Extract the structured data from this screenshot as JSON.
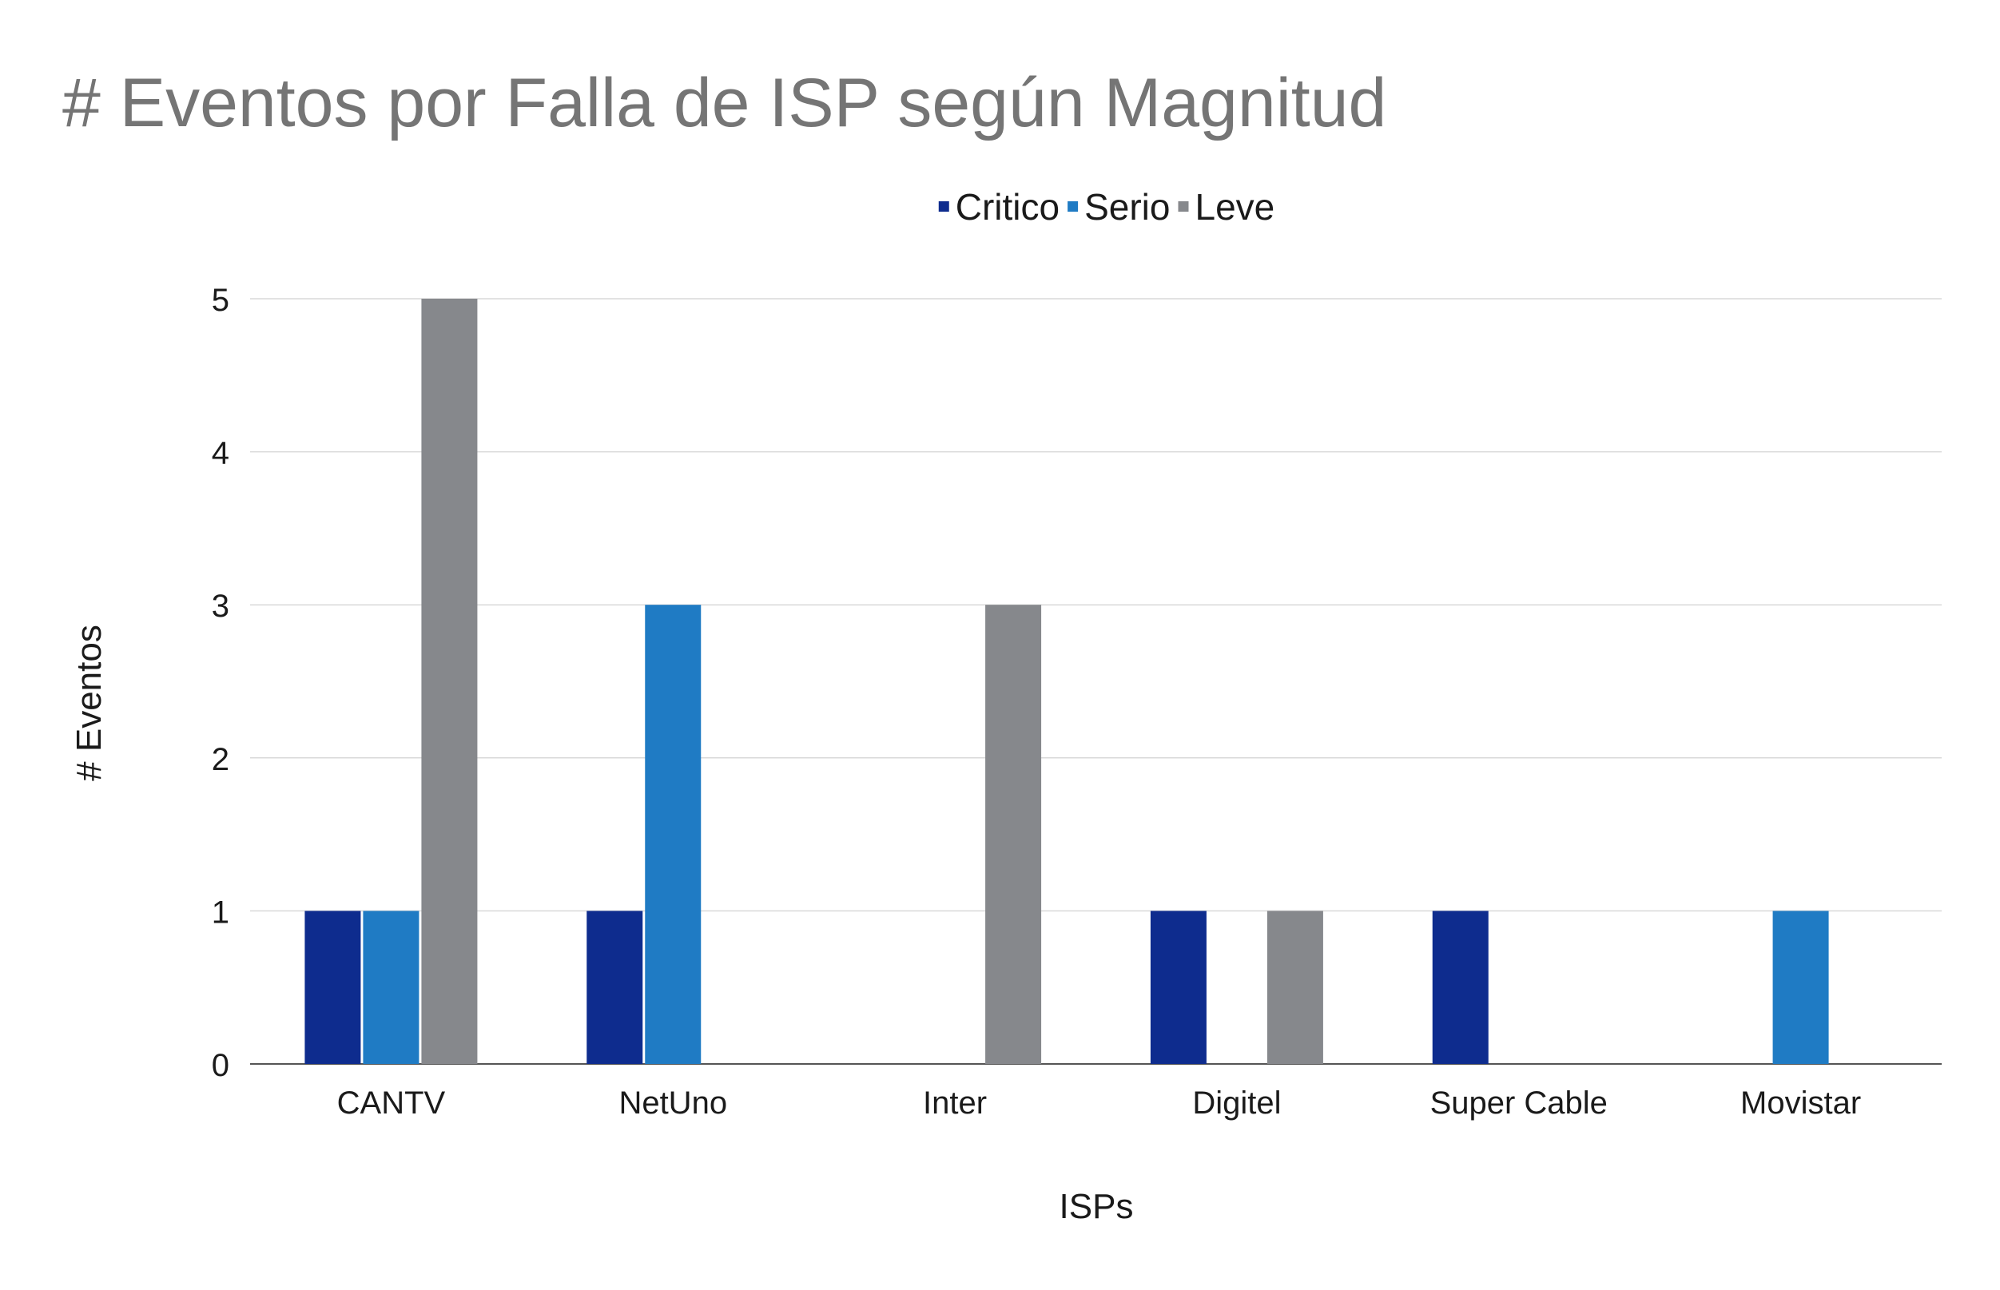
{
  "chart_data": {
    "type": "bar",
    "title": "# Eventos por Falla de ISP según Magnitud",
    "xlabel": "ISPs",
    "ylabel": "# Eventos",
    "categories": [
      "CANTV",
      "NetUno",
      "Inter",
      "Digitel",
      "Super Cable",
      "Movistar"
    ],
    "series": [
      {
        "name": "Critico",
        "color": "#0e2c8e",
        "values": [
          1,
          1,
          0,
          1,
          1,
          0
        ]
      },
      {
        "name": "Serio",
        "color": "#1f7bc4",
        "values": [
          1,
          3,
          0,
          0,
          0,
          1
        ]
      },
      {
        "name": "Leve",
        "color": "#86888c",
        "values": [
          5,
          0,
          3,
          1,
          0,
          0
        ]
      }
    ],
    "ylim": [
      0,
      5
    ],
    "yticks": [
      0,
      1,
      2,
      3,
      4,
      5
    ],
    "grid": true,
    "legend_position": "top"
  }
}
